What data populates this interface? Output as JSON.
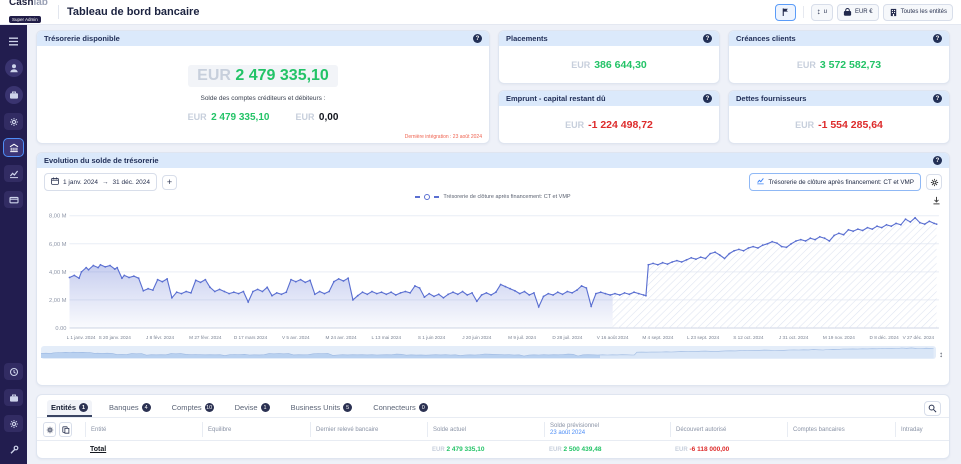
{
  "topbar": {
    "brand_bold": "Cash",
    "brand_light": "lab",
    "brand_badge": "Super Admin",
    "title": "Tableau de bord bancaire",
    "unit_label": "u",
    "currency_label": "EUR €",
    "entities_label": "Toutes les entités"
  },
  "icons": {
    "info": "?",
    "nav_handle": "↕",
    "date_arrow": "→"
  },
  "kpi": {
    "available": {
      "title": "Trésorerie disponible",
      "currency": "EUR",
      "value": "2 479 335,10",
      "subtitle": "Solde des comptes créditeurs et débiteurs :",
      "credit_currency": "EUR",
      "credit_value": "2 479 335,10",
      "debit_currency": "EUR",
      "debit_value": "0,00",
      "footnote": "Dernière intégration : 23 août 2024"
    },
    "cards": [
      {
        "title": "Placements",
        "currency": "EUR",
        "value": "386 644,30",
        "color": "green"
      },
      {
        "title": "Créances clients",
        "currency": "EUR",
        "value": "3 572 582,73",
        "color": "green"
      },
      {
        "title": "Emprunt - capital restant dû",
        "currency": "EUR",
        "value": "-1 224 498,72",
        "color": "red"
      },
      {
        "title": "Dettes fournisseurs",
        "currency": "EUR",
        "value": "-1 554 285,64",
        "color": "red"
      }
    ]
  },
  "chart_card": {
    "title": "Evolution du solde de trésorerie",
    "date_from": "1 janv. 2024",
    "date_to": "31 déc. 2024",
    "add_label": "+",
    "series_button": "Trésorerie de clôture après financement: CT et VMP",
    "legend": "Trésorerie de clôture après financement: CT et VMP"
  },
  "chart_data": {
    "type": "area",
    "series_name": "Trésorerie de clôture après financement: CT et VMP",
    "unit": "millions EUR",
    "line_color": "#5a6fd1",
    "ylim": [
      0,
      8.55
    ],
    "y_tick_values": [
      8,
      6,
      4,
      2,
      0
    ],
    "y_tick_labels": [
      "8,00 M",
      "6,00 M",
      "4,00 M",
      "2,00 M",
      "0,00"
    ],
    "x_days": 365,
    "x_tick_interval_days": 19,
    "x_ticks": [
      "L 1 janv. 2024",
      "S 20 janv. 2024",
      "J 8 févr. 2024",
      "M 27 févr. 2024",
      "D 17 mars 2024",
      "V 5 avr. 2024",
      "M 24 avr. 2024",
      "L 13 mai 2024",
      "S 1 juin 2024",
      "J 20 juin 2024",
      "M 9 juil. 2024",
      "D 28 juil. 2024",
      "V 16 août 2024",
      "M 4 sept. 2024",
      "L 23 sept. 2024",
      "S 12 oct. 2024",
      "J 31 oct. 2024",
      "M 19 nov. 2024",
      "D 8 déc. 2024",
      "V 27 déc. 2024"
    ],
    "forecast_start_day": 228,
    "points": [
      [
        0,
        3.6
      ],
      [
        2,
        3.75
      ],
      [
        4,
        3.55
      ],
      [
        5,
        4.0
      ],
      [
        7,
        4.3
      ],
      [
        8,
        4.15
      ],
      [
        10,
        4.45
      ],
      [
        12,
        4.3
      ],
      [
        13,
        4.5
      ],
      [
        15,
        4.35
      ],
      [
        17,
        4.45
      ],
      [
        19,
        4.2
      ],
      [
        20,
        4.3
      ],
      [
        22,
        3.55
      ],
      [
        23,
        3.75
      ],
      [
        25,
        3.6
      ],
      [
        27,
        3.7
      ],
      [
        29,
        3.55
      ],
      [
        31,
        2.65
      ],
      [
        33,
        2.8
      ],
      [
        35,
        2.7
      ],
      [
        37,
        3.45
      ],
      [
        39,
        3.3
      ],
      [
        41,
        3.5
      ],
      [
        43,
        2.15
      ],
      [
        45,
        2.55
      ],
      [
        47,
        2.45
      ],
      [
        49,
        2.6
      ],
      [
        51,
        2.5
      ],
      [
        53,
        3.4
      ],
      [
        55,
        3.25
      ],
      [
        57,
        3.45
      ],
      [
        59,
        2.9
      ],
      [
        61,
        2.6
      ],
      [
        63,
        2.75
      ],
      [
        65,
        2.6
      ],
      [
        67,
        2.45
      ],
      [
        69,
        2.55
      ],
      [
        71,
        2.45
      ],
      [
        73,
        2.6
      ],
      [
        75,
        1.85
      ],
      [
        77,
        2.6
      ],
      [
        79,
        2.75
      ],
      [
        81,
        2.6
      ],
      [
        83,
        2.9
      ],
      [
        85,
        2.3
      ],
      [
        87,
        2.5
      ],
      [
        89,
        2.4
      ],
      [
        91,
        2.55
      ],
      [
        93,
        3.45
      ],
      [
        95,
        3.3
      ],
      [
        97,
        3.45
      ],
      [
        99,
        3.25
      ],
      [
        101,
        3.4
      ],
      [
        103,
        2.4
      ],
      [
        105,
        2.6
      ],
      [
        107,
        2.45
      ],
      [
        109,
        2.6
      ],
      [
        111,
        3.3
      ],
      [
        113,
        3.5
      ],
      [
        115,
        3.35
      ],
      [
        117,
        3.55
      ],
      [
        119,
        2.0
      ],
      [
        121,
        2.3
      ],
      [
        123,
        2.55
      ],
      [
        125,
        2.4
      ],
      [
        127,
        2.6
      ],
      [
        129,
        2.45
      ],
      [
        131,
        2.55
      ],
      [
        133,
        2.4
      ],
      [
        135,
        2.55
      ],
      [
        137,
        2.35
      ],
      [
        139,
        2.5
      ],
      [
        141,
        2.6
      ],
      [
        143,
        2.5
      ],
      [
        145,
        3.0
      ],
      [
        147,
        2.85
      ],
      [
        149,
        2.2
      ],
      [
        151,
        2.45
      ],
      [
        153,
        2.25
      ],
      [
        155,
        2.4
      ],
      [
        157,
        2.15
      ],
      [
        159,
        2.4
      ],
      [
        161,
        2.55
      ],
      [
        163,
        2.4
      ],
      [
        165,
        2.6
      ],
      [
        167,
        2.35
      ],
      [
        169,
        2.5
      ],
      [
        171,
        1.9
      ],
      [
        173,
        2.35
      ],
      [
        175,
        2.5
      ],
      [
        177,
        2.35
      ],
      [
        179,
        2.55
      ],
      [
        181,
        3.1
      ],
      [
        183,
        2.95
      ],
      [
        185,
        2.8
      ],
      [
        187,
        2.65
      ],
      [
        189,
        2.45
      ],
      [
        191,
        2.6
      ],
      [
        193,
        2.35
      ],
      [
        195,
        2.5
      ],
      [
        197,
        1.5
      ],
      [
        199,
        2.25
      ],
      [
        201,
        2.45
      ],
      [
        203,
        2.35
      ],
      [
        205,
        2.55
      ],
      [
        207,
        2.4
      ],
      [
        209,
        2.6
      ],
      [
        211,
        2.5
      ],
      [
        213,
        2.7
      ],
      [
        215,
        3.0
      ],
      [
        217,
        2.85
      ],
      [
        219,
        1.55
      ],
      [
        221,
        2.45
      ],
      [
        223,
        2.55
      ],
      [
        225,
        2.45
      ],
      [
        227,
        2.35
      ],
      [
        229,
        2.45
      ],
      [
        231,
        2.35
      ],
      [
        233,
        2.5
      ],
      [
        235,
        2.4
      ],
      [
        237,
        2.55
      ],
      [
        239,
        2.45
      ],
      [
        241,
        2.35
      ],
      [
        242,
        2.3
      ],
      [
        243,
        4.5
      ],
      [
        245,
        4.6
      ],
      [
        247,
        4.5
      ],
      [
        249,
        4.65
      ],
      [
        251,
        4.55
      ],
      [
        253,
        4.7
      ],
      [
        255,
        4.8
      ],
      [
        257,
        4.7
      ],
      [
        259,
        4.85
      ],
      [
        261,
        5.0
      ],
      [
        263,
        4.9
      ],
      [
        265,
        5.05
      ],
      [
        267,
        4.95
      ],
      [
        269,
        5.3
      ],
      [
        271,
        5.4
      ],
      [
        273,
        5.2
      ],
      [
        275,
        4.95
      ],
      [
        277,
        5.3
      ],
      [
        279,
        5.5
      ],
      [
        281,
        5.6
      ],
      [
        283,
        5.5
      ],
      [
        285,
        5.7
      ],
      [
        287,
        5.8
      ],
      [
        289,
        5.7
      ],
      [
        291,
        5.9
      ],
      [
        293,
        6.0
      ],
      [
        295,
        6.15
      ],
      [
        297,
        6.05
      ],
      [
        299,
        5.8
      ],
      [
        301,
        5.75
      ],
      [
        303,
        6.0
      ],
      [
        305,
        6.2
      ],
      [
        307,
        6.3
      ],
      [
        309,
        6.2
      ],
      [
        311,
        6.4
      ],
      [
        313,
        6.3
      ],
      [
        315,
        6.5
      ],
      [
        317,
        6.4
      ],
      [
        319,
        6.2
      ],
      [
        321,
        6.6
      ],
      [
        323,
        6.75
      ],
      [
        325,
        6.65
      ],
      [
        327,
        7.0
      ],
      [
        329,
        6.9
      ],
      [
        331,
        7.05
      ],
      [
        333,
        6.95
      ],
      [
        335,
        7.15
      ],
      [
        337,
        7.05
      ],
      [
        339,
        7.25
      ],
      [
        341,
        7.15
      ],
      [
        343,
        7.35
      ],
      [
        345,
        7.25
      ],
      [
        347,
        7.45
      ],
      [
        349,
        7.35
      ],
      [
        351,
        7.75
      ],
      [
        353,
        7.55
      ],
      [
        355,
        7.85
      ],
      [
        357,
        7.5
      ],
      [
        359,
        7.4
      ],
      [
        361,
        7.6
      ],
      [
        363,
        7.45
      ],
      [
        364,
        7.4
      ]
    ]
  },
  "tabs": [
    {
      "label": "Entités",
      "count": "1"
    },
    {
      "label": "Banques",
      "count": "4"
    },
    {
      "label": "Comptes",
      "count": "10"
    },
    {
      "label": "Devise",
      "count": "1"
    },
    {
      "label": "Business Units",
      "count": "5"
    },
    {
      "label": "Connecteurs",
      "count": "0"
    }
  ],
  "table": {
    "headers": [
      {
        "label": "Entité"
      },
      {
        "label": "Equilibre"
      },
      {
        "label": "Dernier relevé bancaire"
      },
      {
        "label": "Solde actuel"
      },
      {
        "label": "Solde prévisionnel",
        "sub": "23 août 2024"
      },
      {
        "label": "Découvert autorisé"
      },
      {
        "label": "Comptes bancaires"
      },
      {
        "label": "Intraday"
      }
    ],
    "total_label": "Total",
    "total": {
      "actual_currency": "EUR",
      "actual_value": "2 479 335,10",
      "forecast_currency": "EUR",
      "forecast_value": "2 500 439,48",
      "overdraft_currency": "EUR",
      "overdraft_value": "-6 118 000,00"
    }
  }
}
